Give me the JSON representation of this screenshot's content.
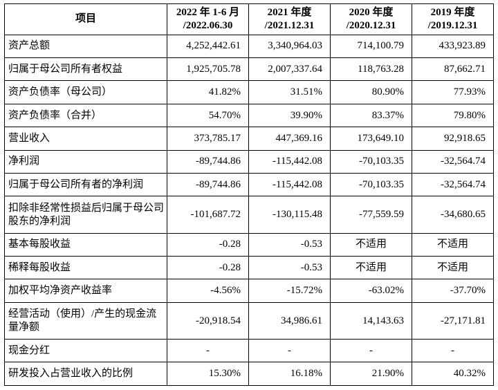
{
  "colors": {
    "background": "#ffffff",
    "border": "#000000",
    "text": "#000000"
  },
  "table": {
    "header": {
      "item_label": "项目",
      "columns": [
        {
          "line1": "2022 年 1-6 月",
          "line2": "/2022.06.30"
        },
        {
          "line1": "2021 年度",
          "line2": "/2021.12.31"
        },
        {
          "line1": "2020 年度",
          "line2": "/2020.12.31"
        },
        {
          "line1": "2019 年度",
          "line2": "/2019.12.31"
        }
      ]
    },
    "rows": [
      {
        "label": "资产总额",
        "values": [
          "4,252,442.61",
          "3,340,964.03",
          "714,100.79",
          "433,923.89"
        ]
      },
      {
        "label": "归属于母公司所有者权益",
        "values": [
          "1,925,705.78",
          "2,007,337.64",
          "118,763.28",
          "87,662.71"
        ]
      },
      {
        "label": "资产负债率（母公司）",
        "values": [
          "41.82%",
          "31.51%",
          "80.90%",
          "77.93%"
        ]
      },
      {
        "label": "资产负债率（合并）",
        "values": [
          "54.70%",
          "39.90%",
          "83.37%",
          "79.80%"
        ]
      },
      {
        "label": "营业收入",
        "values": [
          "373,785.17",
          "447,369.16",
          "173,649.10",
          "92,918.65"
        ]
      },
      {
        "label": "净利润",
        "values": [
          "-89,744.86",
          "-115,442.08",
          "-70,103.35",
          "-32,564.74"
        ]
      },
      {
        "label": "归属于母公司所有者的净利润",
        "values": [
          "-89,744.86",
          "-115,442.08",
          "-70,103.35",
          "-32,564.74"
        ]
      },
      {
        "label": "扣除非经常性损益后归属于母公司股东的净利润",
        "values": [
          "-101,687.72",
          "-130,115.48",
          "-77,559.59",
          "-34,680.65"
        ]
      },
      {
        "label": "基本每股收益",
        "values": [
          "-0.28",
          "-0.53",
          "不适用",
          "不适用"
        ]
      },
      {
        "label": "稀释每股收益",
        "values": [
          "-0.28",
          "-0.53",
          "不适用",
          "不适用"
        ]
      },
      {
        "label": "加权平均净资产收益率",
        "values": [
          "-4.56%",
          "-15.72%",
          "-63.02%",
          "-37.70%"
        ]
      },
      {
        "label": "经营活动（使用）/产生的现金流量净额",
        "values": [
          "-20,918.54",
          "34,986.61",
          "14,143.63",
          "-27,171.81"
        ]
      },
      {
        "label": "现金分红",
        "values": [
          "-",
          "-",
          "-",
          "-"
        ]
      },
      {
        "label": "研发投入占营业收入的比例",
        "values": [
          "15.30%",
          "16.18%",
          "21.90%",
          "40.32%"
        ]
      }
    ]
  }
}
